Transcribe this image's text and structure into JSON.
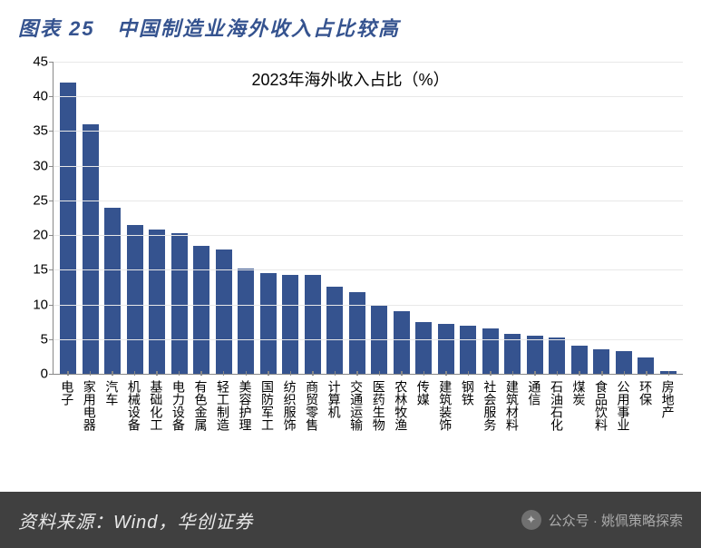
{
  "header": {
    "caption_prefix": "图表 25",
    "caption": "中国制造业海外收入占比较高"
  },
  "chart": {
    "type": "bar",
    "title": "2023年海外收入占比（%）",
    "ylim": [
      0,
      45
    ],
    "ytick_step": 5,
    "yticks": [
      0,
      5,
      10,
      15,
      20,
      25,
      30,
      35,
      40,
      45
    ],
    "bar_color": "#35538f",
    "background_color": "#ffffff",
    "grid_color": "#e8e8e8",
    "axis_color": "#888888",
    "title_fontsize": 18,
    "label_fontsize": 14,
    "bar_width": 0.74,
    "categories": [
      "电子",
      "家用电器",
      "汽车",
      "机械设备",
      "基础化工",
      "电力设备",
      "有色金属",
      "轻工制造",
      "美容护理",
      "国防军工",
      "纺织服饰",
      "商贸零售",
      "计算机",
      "交通运输",
      "医药生物",
      "农林牧渔",
      "传媒",
      "建筑装饰",
      "钢铁",
      "社会服务",
      "建筑材料",
      "通信",
      "石油石化",
      "煤炭",
      "食品饮料",
      "公用事业",
      "环保",
      "房地产"
    ],
    "values": [
      42.0,
      36.0,
      24.0,
      21.5,
      20.8,
      20.3,
      18.5,
      17.9,
      15.2,
      14.5,
      14.3,
      14.2,
      12.5,
      11.8,
      9.8,
      9.0,
      7.5,
      7.2,
      7.0,
      6.5,
      5.7,
      5.5,
      5.2,
      4.0,
      3.5,
      3.3,
      2.3,
      0.4
    ]
  },
  "footer": {
    "source_label": "资料来源：Wind，华创证券",
    "watermark_label": "公众号 · 姚佩策略探索"
  }
}
